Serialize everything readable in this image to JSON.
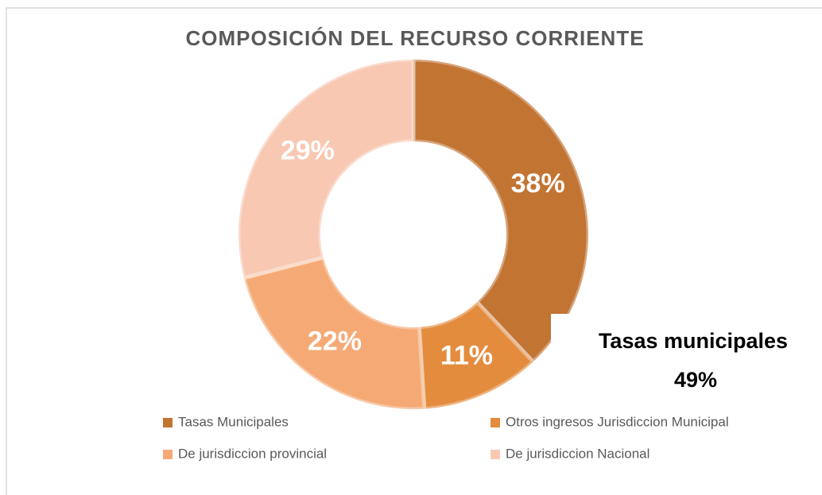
{
  "chart_data": {
    "type": "donut",
    "title": "COMPOSICIÓN DEL RECURSO CORRIENTE",
    "categories": [
      "Tasas Municipales",
      "Otros ingresos Jurisdiccion Municipal",
      "De jurisdiccion provincial",
      "De jurisdiccion Nacional"
    ],
    "values": [
      38,
      11,
      22,
      29
    ],
    "value_labels": [
      "38%",
      "11%",
      "22%",
      "29%"
    ],
    "colors": [
      "#C27433",
      "#E48C3E",
      "#F5AA76",
      "#F8C8B2"
    ],
    "legend": "bottom",
    "annotation": [
      "Tasas municipales",
      "49%"
    ]
  }
}
